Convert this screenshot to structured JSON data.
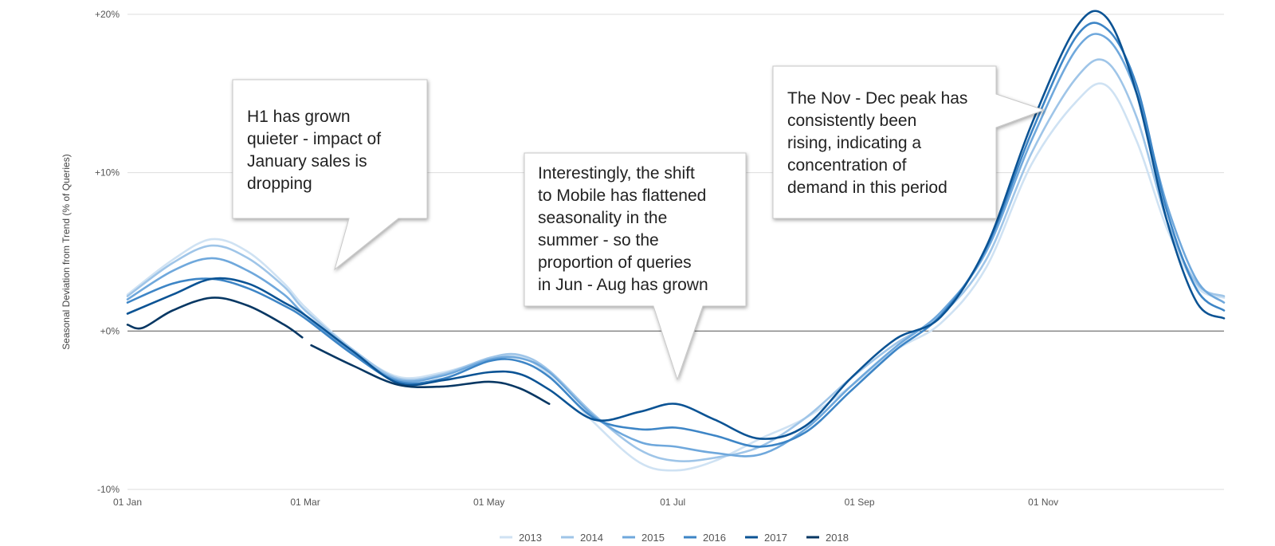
{
  "chart_data": {
    "type": "line",
    "title": "",
    "ylabel": "Seasonal Deviation from Trend (% of Queries)",
    "xlabel": "",
    "ylim": [
      -10,
      20
    ],
    "yticks": [
      {
        "value": 20,
        "label": "+20%"
      },
      {
        "value": 10,
        "label": "+10%"
      },
      {
        "value": 0,
        "label": "+0%"
      },
      {
        "value": -10,
        "label": "-10%"
      }
    ],
    "xticks": [
      {
        "day": 0,
        "label": "01 Jan"
      },
      {
        "day": 59,
        "label": "01 Mar"
      },
      {
        "day": 120,
        "label": "01 May"
      },
      {
        "day": 181,
        "label": "01 Jul"
      },
      {
        "day": 243,
        "label": "01 Sep"
      },
      {
        "day": 304,
        "label": "01 Nov"
      }
    ],
    "x": [
      0,
      15,
      28,
      40,
      52,
      59,
      75,
      90,
      105,
      120,
      130,
      140,
      155,
      170,
      182,
      195,
      210,
      225,
      240,
      255,
      270,
      285,
      300,
      315,
      325,
      335,
      345,
      355,
      364
    ],
    "series": [
      {
        "name": "2013",
        "color": "#cfe2f3",
        "values": [
          2.3,
          4.5,
          5.8,
          5.0,
          3.0,
          1.5,
          -1.2,
          -2.9,
          -2.6,
          -1.8,
          -1.6,
          -2.8,
          -5.8,
          -8.3,
          -8.8,
          -8.2,
          -6.8,
          -5.5,
          -3.5,
          -1.2,
          0.5,
          4.0,
          10.5,
          14.5,
          15.5,
          12.0,
          6.5,
          2.8,
          2.1
        ]
      },
      {
        "name": "2014",
        "color": "#9fc5e8",
        "values": [
          2.2,
          4.3,
          5.4,
          4.6,
          2.8,
          1.3,
          -1.2,
          -3.0,
          -2.7,
          -1.7,
          -1.5,
          -2.5,
          -5.3,
          -7.5,
          -8.2,
          -8.0,
          -7.3,
          -5.5,
          -3.0,
          -0.8,
          1.0,
          4.5,
          11.2,
          16.0,
          17.0,
          13.5,
          7.0,
          3.0,
          2.2
        ]
      },
      {
        "name": "2015",
        "color": "#6fa8dc",
        "values": [
          2.0,
          3.8,
          4.6,
          3.8,
          2.3,
          1.0,
          -1.4,
          -3.1,
          -2.8,
          -1.8,
          -1.7,
          -2.6,
          -5.4,
          -7.0,
          -7.3,
          -7.7,
          -7.8,
          -6.2,
          -3.5,
          -1.0,
          1.2,
          5.0,
          12.0,
          17.8,
          18.5,
          15.0,
          8.0,
          3.2,
          1.8
        ]
      },
      {
        "name": "2016",
        "color": "#3d85c6",
        "values": [
          1.8,
          3.0,
          3.3,
          2.7,
          1.6,
          0.8,
          -1.5,
          -3.2,
          -3.0,
          -1.9,
          -1.9,
          -2.9,
          -5.5,
          -6.2,
          -6.1,
          -6.6,
          -7.3,
          -6.4,
          -3.8,
          -1.2,
          1.0,
          5.2,
          12.5,
          18.6,
          19.1,
          15.5,
          7.6,
          2.6,
          1.3
        ]
      },
      {
        "name": "2017",
        "color": "#0b5394",
        "values": [
          1.1,
          2.3,
          3.3,
          3.0,
          1.8,
          1.0,
          -1.3,
          -3.3,
          -3.1,
          -2.6,
          -2.7,
          -3.7,
          -5.6,
          -5.1,
          -4.6,
          -5.6,
          -6.8,
          -6.0,
          -3.0,
          -0.5,
          0.9,
          5.3,
          13.0,
          19.2,
          19.8,
          15.0,
          7.0,
          1.8,
          0.8
        ]
      },
      {
        "name": "2018",
        "color": "#073763",
        "segments": [
          {
            "x": [
              0,
              5,
              15,
              28,
              40,
              52,
              58
            ],
            "values": [
              0.4,
              0.2,
              1.3,
              2.1,
              1.6,
              0.4,
              -0.4
            ]
          },
          {
            "x": [
              61,
              75,
              90,
              105,
              120,
              130,
              140
            ],
            "values": [
              -0.9,
              -2.2,
              -3.4,
              -3.5,
              -3.2,
              -3.6,
              -4.6
            ]
          }
        ]
      }
    ],
    "annotations": [
      {
        "text": [
          "H1 has grown",
          "quieter - impact of",
          "January sales is",
          "dropping"
        ]
      },
      {
        "text": [
          "Interestingly, the shift",
          "to Mobile has flattened",
          "seasonality in the",
          "summer - so the",
          "proportion of  queries",
          "in Jun - Aug has grown"
        ]
      },
      {
        "text": [
          "The Nov - Dec peak has",
          "consistently been",
          "rising, indicating a",
          "concentration of",
          "demand in this period"
        ]
      }
    ]
  }
}
